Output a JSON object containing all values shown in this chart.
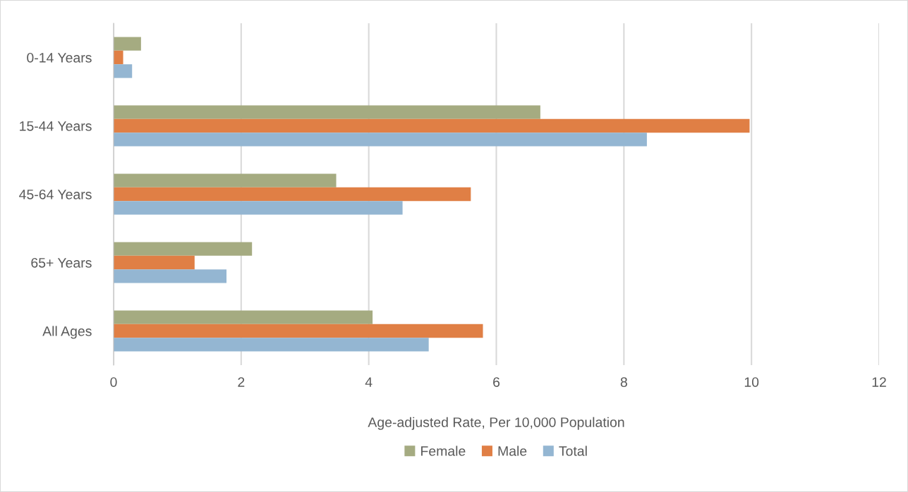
{
  "chart_data": {
    "type": "bar",
    "orientation": "horizontal",
    "xlabel": "Age-adjusted Rate, Per 10,000 Population",
    "categories": [
      "0-14 Years",
      "15-44 Years",
      "45-64 Years",
      "65+ Years",
      "All Ages"
    ],
    "series": [
      {
        "name": "Female",
        "color": "#a5ab81",
        "values": [
          0.43,
          6.69,
          3.49,
          2.17,
          4.06
        ]
      },
      {
        "name": "Male",
        "color": "#e07f45",
        "values": [
          0.15,
          9.97,
          5.6,
          1.27,
          5.79
        ]
      },
      {
        "name": "Total",
        "color": "#94b6d2",
        "values": [
          0.29,
          8.36,
          4.53,
          1.77,
          4.94
        ]
      }
    ],
    "xlim": [
      0,
      12
    ],
    "xticks": [
      0,
      2,
      4,
      6,
      8,
      10,
      12
    ],
    "grid": "x",
    "legend": "bottom"
  }
}
